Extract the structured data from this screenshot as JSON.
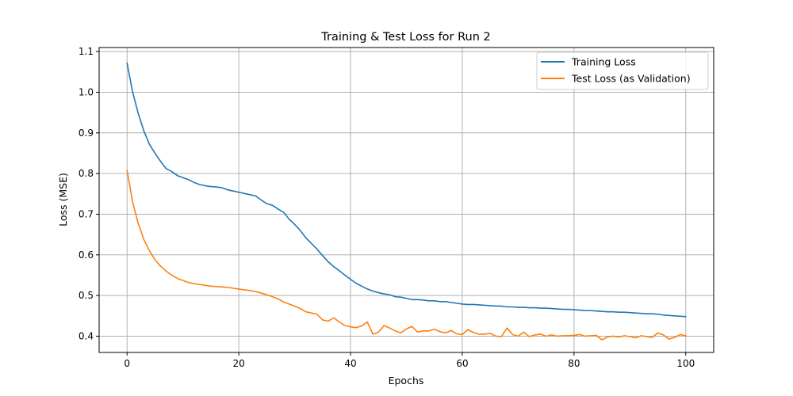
{
  "chart_data": {
    "type": "line",
    "title": "Training & Test Loss for Run 2",
    "xlabel": "Epochs",
    "ylabel": "Loss (MSE)",
    "xlim": [
      -5,
      105
    ],
    "ylim": [
      0.36,
      1.11
    ],
    "xticks": [
      0,
      20,
      40,
      60,
      80,
      100
    ],
    "yticks": [
      0.4,
      0.5,
      0.6,
      0.7,
      0.8,
      0.9,
      1.0,
      1.1
    ],
    "ytick_labels": [
      "0.4",
      "0.5",
      "0.6",
      "0.7",
      "0.8",
      "0.9",
      "1.0",
      "1.1"
    ],
    "grid": true,
    "legend_position": "top-right",
    "x": [
      0,
      1,
      2,
      3,
      4,
      5,
      6,
      7,
      8,
      9,
      10,
      11,
      12,
      13,
      14,
      15,
      16,
      17,
      18,
      19,
      20,
      21,
      22,
      23,
      24,
      25,
      26,
      27,
      28,
      29,
      30,
      31,
      32,
      33,
      34,
      35,
      36,
      37,
      38,
      39,
      40,
      41,
      42,
      43,
      44,
      45,
      46,
      47,
      48,
      49,
      50,
      51,
      52,
      53,
      54,
      55,
      56,
      57,
      58,
      59,
      60,
      61,
      62,
      63,
      64,
      65,
      66,
      67,
      68,
      69,
      70,
      71,
      72,
      73,
      74,
      75,
      76,
      77,
      78,
      79,
      80,
      81,
      82,
      83,
      84,
      85,
      86,
      87,
      88,
      89,
      90,
      91,
      92,
      93,
      94,
      95,
      96,
      97,
      98,
      99,
      100
    ],
    "series": [
      {
        "name": "Training Loss",
        "color": "#1f77b4",
        "values": [
          1.072,
          1.0,
          0.948,
          0.905,
          0.872,
          0.85,
          0.83,
          0.812,
          0.805,
          0.795,
          0.79,
          0.785,
          0.778,
          0.773,
          0.77,
          0.768,
          0.767,
          0.765,
          0.76,
          0.757,
          0.754,
          0.751,
          0.748,
          0.745,
          0.735,
          0.726,
          0.722,
          0.713,
          0.705,
          0.688,
          0.675,
          0.66,
          0.642,
          0.628,
          0.614,
          0.598,
          0.583,
          0.571,
          0.561,
          0.55,
          0.54,
          0.53,
          0.523,
          0.516,
          0.511,
          0.507,
          0.504,
          0.502,
          0.497,
          0.496,
          0.493,
          0.49,
          0.49,
          0.489,
          0.487,
          0.487,
          0.485,
          0.485,
          0.483,
          0.481,
          0.479,
          0.478,
          0.478,
          0.477,
          0.476,
          0.475,
          0.474,
          0.474,
          0.472,
          0.472,
          0.471,
          0.471,
          0.47,
          0.47,
          0.469,
          0.469,
          0.468,
          0.467,
          0.466,
          0.466,
          0.465,
          0.464,
          0.463,
          0.463,
          0.462,
          0.461,
          0.46,
          0.46,
          0.459,
          0.459,
          0.458,
          0.457,
          0.456,
          0.455,
          0.455,
          0.454,
          0.452,
          0.451,
          0.45,
          0.449,
          0.448
        ]
      },
      {
        "name": "Test Loss (as Validation)",
        "color": "#ff7f0e",
        "values": [
          0.808,
          0.73,
          0.677,
          0.638,
          0.61,
          0.588,
          0.572,
          0.56,
          0.55,
          0.542,
          0.537,
          0.532,
          0.529,
          0.527,
          0.525,
          0.523,
          0.522,
          0.521,
          0.52,
          0.518,
          0.516,
          0.514,
          0.512,
          0.51,
          0.506,
          0.502,
          0.497,
          0.492,
          0.484,
          0.479,
          0.474,
          0.468,
          0.46,
          0.457,
          0.454,
          0.44,
          0.437,
          0.445,
          0.435,
          0.426,
          0.423,
          0.421,
          0.425,
          0.435,
          0.405,
          0.41,
          0.426,
          0.42,
          0.413,
          0.408,
          0.418,
          0.424,
          0.41,
          0.413,
          0.413,
          0.417,
          0.411,
          0.408,
          0.414,
          0.406,
          0.404,
          0.416,
          0.409,
          0.405,
          0.405,
          0.407,
          0.4,
          0.399,
          0.42,
          0.404,
          0.4,
          0.41,
          0.399,
          0.403,
          0.405,
          0.4,
          0.403,
          0.4,
          0.401,
          0.401,
          0.402,
          0.404,
          0.4,
          0.401,
          0.402,
          0.391,
          0.398,
          0.4,
          0.398,
          0.401,
          0.399,
          0.396,
          0.401,
          0.399,
          0.397,
          0.408,
          0.403,
          0.393,
          0.397,
          0.404,
          0.401
        ]
      }
    ]
  }
}
